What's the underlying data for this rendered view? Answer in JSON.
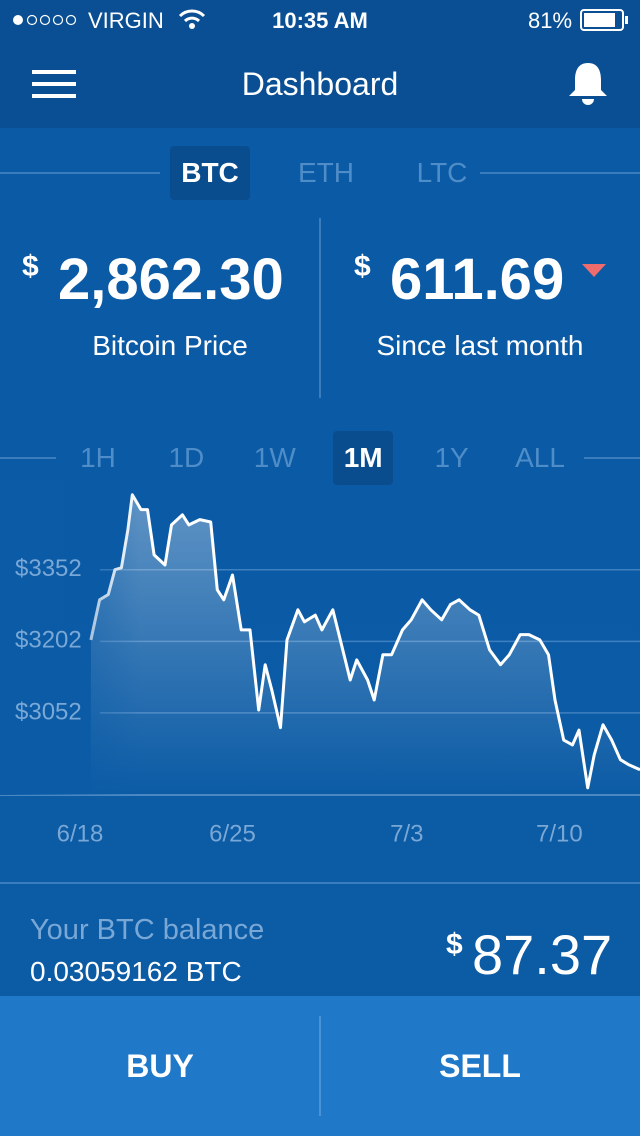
{
  "status_bar": {
    "carrier": "VIRGIN",
    "time": "10:35 AM",
    "battery": "81%"
  },
  "header": {
    "title": "Dashboard"
  },
  "currency_tabs": [
    {
      "label": "BTC",
      "active": true
    },
    {
      "label": "ETH",
      "active": false
    },
    {
      "label": "LTC",
      "active": false
    }
  ],
  "price": {
    "currency": "$",
    "amount": "2,862.30",
    "label": "Bitcoin Price"
  },
  "change": {
    "currency": "$",
    "amount": "611.69",
    "label": "Since last month",
    "trend": "down"
  },
  "range_tabs": [
    {
      "label": "1H",
      "active": false
    },
    {
      "label": "1D",
      "active": false
    },
    {
      "label": "1W",
      "active": false
    },
    {
      "label": "1M",
      "active": true
    },
    {
      "label": "1Y",
      "active": false
    },
    {
      "label": "ALL",
      "active": false
    }
  ],
  "chart_data": {
    "type": "line",
    "color": "#ffffff",
    "area": true,
    "x": [
      0.5,
      0.9,
      1.3,
      1.6,
      1.9,
      2.2,
      2.4,
      2.8,
      3.1,
      3.4,
      3.9,
      4.2,
      4.7,
      5.0,
      5.5,
      6.0,
      6.3,
      6.6,
      7.0,
      7.4,
      7.8,
      8.2,
      8.5,
      8.8,
      9.2,
      9.5,
      10.0,
      10.3,
      10.8,
      11.1,
      11.6,
      12.0,
      12.4,
      12.7,
      13.2,
      13.5,
      13.9,
      14.3,
      14.8,
      15.2,
      15.7,
      16.1,
      16.6,
      17.0,
      17.4,
      17.9,
      18.3,
      18.8,
      19.3,
      19.7,
      20.2,
      20.6,
      21.1,
      21.5,
      21.8,
      22.2,
      22.6,
      22.9,
      23.3,
      23.6,
      24.0,
      24.4,
      24.8,
      25.2,
      25.7
    ],
    "values": [
      3205,
      3289,
      3300,
      3352,
      3356,
      3436,
      3509,
      3478,
      3478,
      3383,
      3362,
      3446,
      3467,
      3446,
      3457,
      3452,
      3310,
      3289,
      3341,
      3226,
      3226,
      3058,
      3153,
      3100,
      3021,
      3205,
      3268,
      3243,
      3257,
      3226,
      3268,
      3195,
      3121,
      3163,
      3121,
      3079,
      3174,
      3174,
      3226,
      3247,
      3289,
      3268,
      3247,
      3279,
      3289,
      3268,
      3257,
      3184,
      3153,
      3174,
      3216,
      3216,
      3205,
      3174,
      3079,
      2995,
      2985,
      3016,
      2895,
      2964,
      3027,
      2995,
      2954,
      2943,
      2933
    ],
    "xlim": [
      0,
      25.7
    ],
    "ylim": [
      2880,
      3540
    ],
    "xticks": [
      {
        "value": 0,
        "label": "6/18"
      },
      {
        "value": 7,
        "label": "6/25"
      },
      {
        "value": 15,
        "label": "7/3"
      },
      {
        "value": 22,
        "label": "7/10"
      }
    ],
    "yticks": [
      {
        "value": 3052,
        "label": "$3052"
      },
      {
        "value": 3202,
        "label": "$3202"
      },
      {
        "value": 3352,
        "label": "$3352"
      }
    ],
    "grid": true
  },
  "balance": {
    "label": "Your BTC balance",
    "amount": "0.03059162 BTC",
    "currency": "$",
    "value": "87.37"
  },
  "actions": [
    "BUY",
    "SELL"
  ]
}
